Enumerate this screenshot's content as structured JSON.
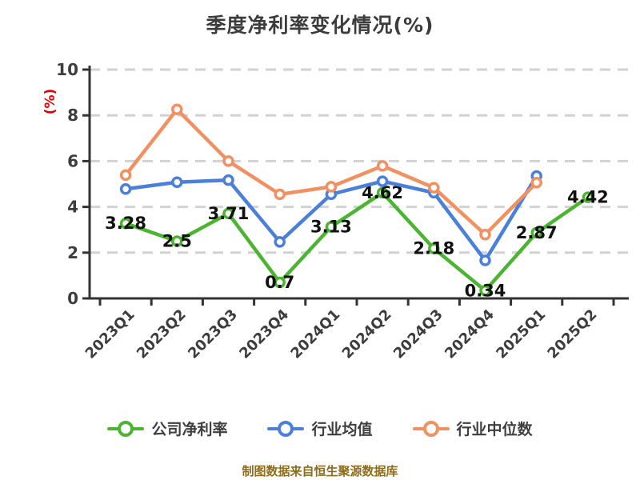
{
  "caption": "制图数据来自恒生聚源数据库",
  "chart_data": {
    "type": "line",
    "title": "季度净利率变化情况(%)",
    "ylabel": "(%)",
    "categories": [
      "2023Q1",
      "2023Q2",
      "2023Q3",
      "2023Q4",
      "2024Q1",
      "2024Q2",
      "2024Q3",
      "2024Q4",
      "2025Q1",
      "2025Q2"
    ],
    "series": [
      {
        "id": "company-net-margin",
        "name": "公司净利率",
        "color": "#4bb431",
        "show_labels": true,
        "values": [
          3.28,
          2.5,
          3.71,
          0.7,
          3.13,
          4.62,
          2.18,
          0.34,
          2.87,
          4.42
        ]
      },
      {
        "id": "industry-average",
        "name": "行业均值",
        "color": "#4a80d9",
        "show_labels": false,
        "values": [
          4.78,
          5.08,
          5.17,
          2.47,
          4.55,
          5.12,
          4.62,
          1.66,
          5.35,
          null
        ]
      },
      {
        "id": "industry-median",
        "name": "行业中位数",
        "color": "#f29062",
        "show_labels": false,
        "values": [
          5.39,
          8.26,
          6.0,
          4.55,
          4.88,
          5.79,
          4.84,
          2.79,
          5.06,
          null
        ]
      }
    ],
    "ylim": [
      0,
      10
    ],
    "yticks": [
      0,
      2,
      4,
      6,
      8,
      10
    ],
    "grid": "dashed",
    "legend_position": "bottom",
    "axis_color": "#333333",
    "grid_color": "#d2d2d2",
    "tick_label_color": "#3d3d3d",
    "data_label_color": "#111111",
    "title_color": "#3c3c3c",
    "ylabel_color": "#e60000",
    "caption_color": "#8f6c1a"
  }
}
